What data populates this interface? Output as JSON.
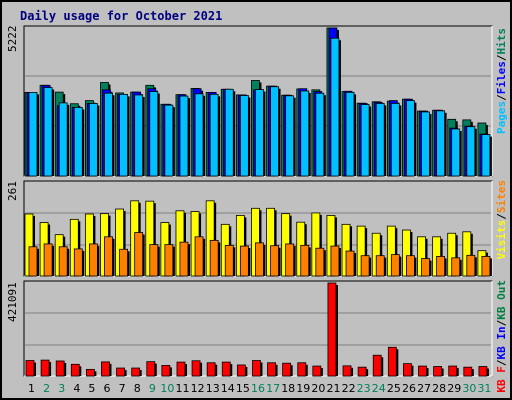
{
  "title": "Daily usage for October 2021",
  "colors": {
    "hits": "#00805c",
    "files": "#0000ff",
    "pages": "#00c0ff",
    "visits": "#ffff00",
    "sites": "#ff8000",
    "kbin": "#0000ff",
    "kbout": "#008040",
    "kbf": "#ff0000",
    "title": "#000080",
    "weekend_day": "#00805c",
    "weekday": "#000000"
  },
  "panel_labels": {
    "top": [
      "Pages",
      "/",
      "Files",
      "/",
      "Hits"
    ],
    "mid": [
      "Visits",
      "/",
      "Sites"
    ],
    "bot": [
      "KB F",
      "/",
      "KB In",
      "/",
      "KB Out"
    ]
  },
  "chart_data": {
    "type": "bar",
    "title": "Daily usage for October 2021",
    "categories": [
      "1",
      "2",
      "3",
      "4",
      "5",
      "6",
      "7",
      "8",
      "9",
      "10",
      "11",
      "12",
      "13",
      "14",
      "15",
      "16",
      "17",
      "18",
      "19",
      "20",
      "21",
      "22",
      "23",
      "24",
      "25",
      "26",
      "27",
      "28",
      "29",
      "30",
      "31"
    ],
    "weekend_days": [
      "2",
      "3",
      "9",
      "10",
      "16",
      "17",
      "23",
      "24",
      "30",
      "31"
    ],
    "panels": [
      {
        "name": "top",
        "ymax": 5222,
        "ymax_label": "5222",
        "series": [
          {
            "name": "Hits",
            "values": [
              2950,
              3200,
              2960,
              2550,
              2660,
              3300,
              2930,
              2960,
              3200,
              2530,
              2870,
              3090,
              2950,
              3060,
              2860,
              3370,
              3170,
              2850,
              3070,
              3040,
              5222,
              2980,
              2570,
              2620,
              2640,
              2710,
              2290,
              2320,
              2000,
              1980,
              1870
            ]
          },
          {
            "name": "Files",
            "values": [
              2950,
              3200,
              2480,
              2420,
              2560,
              3040,
              2880,
              2960,
              3080,
              2530,
              2870,
              3080,
              2950,
              3060,
              2860,
              3040,
              3170,
              2850,
              3080,
              2980,
              5222,
              2990,
              2560,
              2600,
              2660,
              2710,
              2290,
              2320,
              1690,
              1760,
              1480
            ]
          },
          {
            "name": "Pages",
            "values": [
              2950,
              3120,
              2580,
              2420,
              2560,
              2920,
              2880,
              2860,
              2980,
              2500,
              2820,
              2900,
              2880,
              3060,
              2840,
              3050,
              3150,
              2830,
              3000,
              2920,
              4860,
              2950,
              2520,
              2560,
              2560,
              2660,
              2260,
              2300,
              1660,
              1740,
              1460
            ]
          }
        ]
      },
      {
        "name": "mid",
        "ymax": 261,
        "ymax_label": "261",
        "series": [
          {
            "name": "Visits",
            "values": [
              174,
              150,
              116,
              159,
              174,
              175,
              188,
              211,
              210,
              150,
              183,
              181,
              211,
              145,
              170,
              190,
              190,
              175,
              151,
              177,
              170,
              145,
              140,
              120,
              140,
              129,
              110,
              110,
              120,
              124,
              71
            ]
          },
          {
            "name": "Sites",
            "values": [
              82,
              90,
              82,
              76,
              90,
              110,
              75,
              122,
              88,
              88,
              95,
              110,
              100,
              86,
              84,
              93,
              85,
              90,
              86,
              78,
              84,
              70,
              57,
              57,
              60,
              57,
              49,
              55,
              51,
              58,
              55
            ]
          }
        ]
      },
      {
        "name": "bot",
        "ymax": 421091,
        "ymax_label": "421091",
        "series": [
          {
            "name": "KB F",
            "values": [
              70000,
              72000,
              68000,
              53000,
              30000,
              64000,
              36000,
              36000,
              65000,
              48000,
              63000,
              69000,
              60000,
              63000,
              50000,
              70000,
              60000,
              58000,
              60000,
              45000,
              421091,
              46000,
              40000,
              94000,
              130000,
              56000,
              45000,
              43000,
              45000,
              40000,
              43000
            ]
          },
          {
            "name": "KB In",
            "values": [
              0,
              0,
              0,
              0,
              0,
              0,
              0,
              0,
              0,
              0,
              0,
              0,
              0,
              0,
              0,
              0,
              0,
              0,
              0,
              0,
              0,
              0,
              0,
              0,
              0,
              0,
              0,
              0,
              0,
              0,
              0
            ]
          },
          {
            "name": "KB Out",
            "values": [
              0,
              0,
              0,
              0,
              0,
              0,
              0,
              0,
              0,
              0,
              0,
              0,
              0,
              0,
              0,
              0,
              0,
              0,
              0,
              0,
              0,
              0,
              0,
              0,
              0,
              0,
              0,
              0,
              0,
              0,
              0
            ]
          }
        ]
      }
    ],
    "grid": true
  }
}
